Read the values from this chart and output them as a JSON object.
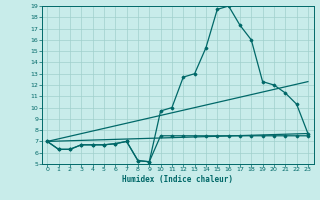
{
  "xlabel": "Humidex (Indice chaleur)",
  "bg_color": "#c8ecea",
  "grid_color": "#a0d0cc",
  "line_color": "#006868",
  "xlim": [
    -0.5,
    23.5
  ],
  "ylim": [
    5,
    19
  ],
  "xticks": [
    0,
    1,
    2,
    3,
    4,
    5,
    6,
    7,
    8,
    9,
    10,
    11,
    12,
    13,
    14,
    15,
    16,
    17,
    18,
    19,
    20,
    21,
    22,
    23
  ],
  "yticks": [
    5,
    6,
    7,
    8,
    9,
    10,
    11,
    12,
    13,
    14,
    15,
    16,
    17,
    18,
    19
  ],
  "curve_main_x": [
    0,
    1,
    2,
    3,
    4,
    5,
    6,
    7,
    8,
    9,
    10,
    11,
    12,
    13,
    14,
    15,
    16,
    17,
    18,
    19,
    20,
    21,
    22,
    23
  ],
  "curve_main_y": [
    7.0,
    6.3,
    6.3,
    6.7,
    6.7,
    6.7,
    6.8,
    7.0,
    5.3,
    5.2,
    9.7,
    10.0,
    12.7,
    13.0,
    15.3,
    18.7,
    19.0,
    17.3,
    16.0,
    12.3,
    12.0,
    11.3,
    10.3,
    7.7
  ],
  "curve_flat_x": [
    0,
    1,
    2,
    3,
    4,
    5,
    6,
    7,
    8,
    9,
    10,
    11,
    12,
    13,
    14,
    15,
    16,
    17,
    18,
    19,
    20,
    21,
    22,
    23
  ],
  "curve_flat_y": [
    7.0,
    6.3,
    6.3,
    6.7,
    6.7,
    6.7,
    6.8,
    7.0,
    5.3,
    5.2,
    7.5,
    7.5,
    7.5,
    7.5,
    7.5,
    7.5,
    7.5,
    7.5,
    7.5,
    7.5,
    7.5,
    7.5,
    7.5,
    7.5
  ],
  "line1_x": [
    0,
    23
  ],
  "line1_y": [
    7.0,
    7.7
  ],
  "line2_x": [
    0,
    23
  ],
  "line2_y": [
    7.0,
    12.3
  ]
}
